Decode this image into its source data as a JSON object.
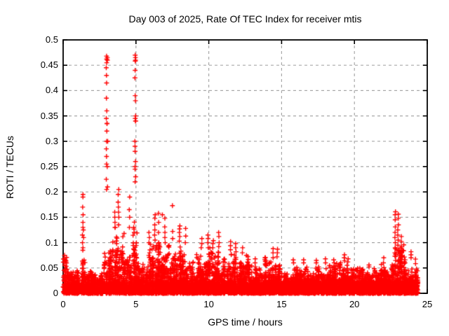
{
  "window": {
    "title": "Day 003 of 2025, Rate Of TEC Index for receiver mtis"
  },
  "chart_data": {
    "type": "scatter",
    "title": "Day 003 of 2025, Rate Of TEC Index for receiver mtis",
    "xlabel": "GPS time / hours",
    "ylabel": "ROTI / TECUs",
    "xlim": [
      0,
      25
    ],
    "ylim": [
      0,
      0.5
    ],
    "xticks": [
      0,
      5,
      10,
      15,
      20,
      25
    ],
    "yticks": [
      0,
      0.05,
      0.1,
      0.15,
      0.2,
      0.25,
      0.3,
      0.35,
      0.4,
      0.45,
      0.5
    ],
    "xtick_labels": [
      "0",
      "5",
      "10",
      "15",
      "20",
      "25"
    ],
    "ytick_labels": [
      "0",
      "0.05",
      "0.1",
      "0.15",
      "0.2",
      "0.25",
      "0.3",
      "0.35",
      "0.4",
      "0.45",
      "0.5"
    ],
    "grid": {
      "on": true,
      "color": "#a8a8a8",
      "dash": "4 4"
    },
    "frame_color": "#000000",
    "background": "#ffffff",
    "marker": {
      "shape": "plus",
      "color": "#ff0000",
      "size": 7
    },
    "series_name": "ROTI",
    "x_data_range": [
      0,
      24.35
    ],
    "dense_bins": [
      [
        0.0,
        0.35,
        0.068
      ],
      [
        0.35,
        1.0,
        0.042
      ],
      [
        1.0,
        1.2,
        0.05
      ],
      [
        1.2,
        1.55,
        0.065
      ],
      [
        1.55,
        2.45,
        0.042
      ],
      [
        2.45,
        2.8,
        0.05
      ],
      [
        2.8,
        3.35,
        0.105
      ],
      [
        3.35,
        4.15,
        0.125
      ],
      [
        4.15,
        4.7,
        0.075
      ],
      [
        4.7,
        5.2,
        0.135
      ],
      [
        5.2,
        5.85,
        0.06
      ],
      [
        5.85,
        6.65,
        0.095
      ],
      [
        6.65,
        7.35,
        0.095
      ],
      [
        7.35,
        7.75,
        0.105
      ],
      [
        7.75,
        8.45,
        0.1
      ],
      [
        8.45,
        9.2,
        0.062
      ],
      [
        9.2,
        10.45,
        0.088
      ],
      [
        10.45,
        11.2,
        0.078
      ],
      [
        11.2,
        12.25,
        0.082
      ],
      [
        12.25,
        12.75,
        0.072
      ],
      [
        12.75,
        13.85,
        0.052
      ],
      [
        13.85,
        14.85,
        0.068
      ],
      [
        14.85,
        16.2,
        0.052
      ],
      [
        16.2,
        16.85,
        0.058
      ],
      [
        16.85,
        18.25,
        0.052
      ],
      [
        18.25,
        19.65,
        0.058
      ],
      [
        19.65,
        20.65,
        0.05
      ],
      [
        20.65,
        21.65,
        0.048
      ],
      [
        21.65,
        22.45,
        0.058
      ],
      [
        22.45,
        23.45,
        0.092
      ],
      [
        23.45,
        24.35,
        0.068
      ]
    ],
    "spikes": [
      [
        0.12,
        [
          0.055,
          0.062,
          0.068,
          0.075
        ]
      ],
      [
        1.35,
        [
          0.085,
          0.1,
          0.115,
          0.13,
          0.14,
          0.155,
          0.17,
          0.19,
          0.195
        ]
      ],
      [
        1.38,
        [
          0.09,
          0.11,
          0.125
        ]
      ],
      [
        2.98,
        [
          0.205,
          0.225,
          0.255,
          0.27,
          0.285,
          0.3,
          0.32,
          0.335,
          0.345,
          0.36,
          0.385,
          0.415,
          0.43,
          0.445,
          0.455,
          0.462,
          0.468
        ]
      ],
      [
        3.04,
        [
          0.21,
          0.25,
          0.3,
          0.335,
          0.46,
          0.465
        ]
      ],
      [
        3.55,
        [
          0.13,
          0.14,
          0.15,
          0.16
        ]
      ],
      [
        3.8,
        [
          0.135,
          0.15,
          0.16,
          0.17,
          0.18,
          0.195,
          0.205
        ]
      ],
      [
        4.55,
        [
          0.13,
          0.15,
          0.165,
          0.19
        ]
      ],
      [
        4.95,
        [
          0.22,
          0.245,
          0.25,
          0.28,
          0.29,
          0.3,
          0.34,
          0.345,
          0.38,
          0.39,
          0.425,
          0.44,
          0.458,
          0.465,
          0.47
        ]
      ],
      [
        4.99,
        [
          0.23,
          0.26,
          0.34,
          0.35,
          0.46
        ]
      ],
      [
        5.9,
        [
          0.1,
          0.11,
          0.12
        ]
      ],
      [
        6.3,
        [
          0.105,
          0.115,
          0.125,
          0.135,
          0.148,
          0.155
        ]
      ],
      [
        6.55,
        [
          0.1,
          0.12,
          0.14,
          0.158
        ]
      ],
      [
        6.8,
        [
          0.155
        ]
      ],
      [
        7.0,
        [
          0.1,
          0.11,
          0.12,
          0.131,
          0.148
        ]
      ],
      [
        7.5,
        [
          0.108,
          0.122,
          0.173
        ]
      ],
      [
        8.0,
        [
          0.103,
          0.112,
          0.12,
          0.127,
          0.133
        ]
      ],
      [
        8.4,
        [
          0.1,
          0.113,
          0.128
        ]
      ],
      [
        9.5,
        [
          0.09,
          0.098,
          0.108
        ]
      ],
      [
        9.95,
        [
          0.09,
          0.1,
          0.108,
          0.115
        ]
      ],
      [
        10.3,
        [
          0.09,
          0.098,
          0.104
        ]
      ],
      [
        10.7,
        [
          0.092,
          0.1,
          0.112,
          0.12
        ]
      ],
      [
        11.5,
        [
          0.086,
          0.094,
          0.102
        ]
      ],
      [
        11.85,
        [
          0.082,
          0.09,
          0.098
        ]
      ],
      [
        12.3,
        [
          0.08,
          0.09
        ]
      ],
      [
        13.2,
        [
          0.06,
          0.068
        ]
      ],
      [
        14.4,
        [
          0.07,
          0.08,
          0.088
        ]
      ],
      [
        14.7,
        [
          0.072,
          0.08,
          0.087
        ]
      ],
      [
        15.8,
        [
          0.06,
          0.066
        ]
      ],
      [
        16.5,
        [
          0.06,
          0.066
        ]
      ],
      [
        17.4,
        [
          0.06,
          0.065
        ]
      ],
      [
        18.0,
        [
          0.06,
          0.068
        ]
      ],
      [
        18.6,
        [
          0.06,
          0.066
        ]
      ],
      [
        19.3,
        [
          0.064,
          0.07,
          0.076
        ]
      ],
      [
        19.55,
        [
          0.062,
          0.068
        ]
      ],
      [
        21.0,
        [
          0.052,
          0.056
        ]
      ],
      [
        22.0,
        [
          0.06,
          0.07
        ]
      ],
      [
        22.8,
        [
          0.08,
          0.09,
          0.1,
          0.11,
          0.12,
          0.131,
          0.145,
          0.155,
          0.161
        ]
      ],
      [
        23.0,
        [
          0.085,
          0.095,
          0.105,
          0.115,
          0.125,
          0.135,
          0.148,
          0.156
        ]
      ],
      [
        23.2,
        [
          0.082,
          0.092,
          0.102,
          0.112
        ]
      ],
      [
        23.9,
        [
          0.07,
          0.076,
          0.082
        ]
      ]
    ]
  }
}
